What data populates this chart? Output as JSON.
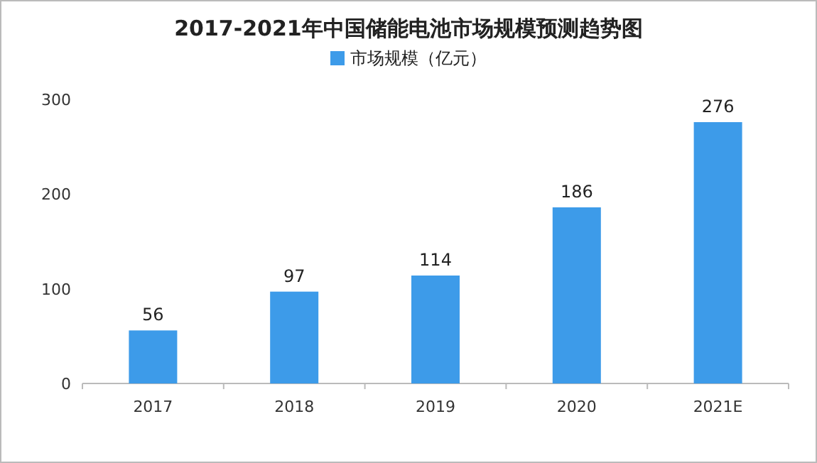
{
  "chart_data": {
    "type": "bar",
    "title": "2017-2021年中国储能电池市场规模预测趋势图",
    "categories": [
      "2017",
      "2018",
      "2019",
      "2020",
      "2021E"
    ],
    "series": [
      {
        "name": "市场规模（亿元）",
        "color": "#3d9be9",
        "values": [
          56,
          97,
          114,
          186,
          276
        ]
      }
    ],
    "ylim": [
      0,
      300
    ],
    "yticks": [
      0,
      100,
      200,
      300
    ],
    "data_labels": true,
    "legend": "top",
    "grid": false
  }
}
